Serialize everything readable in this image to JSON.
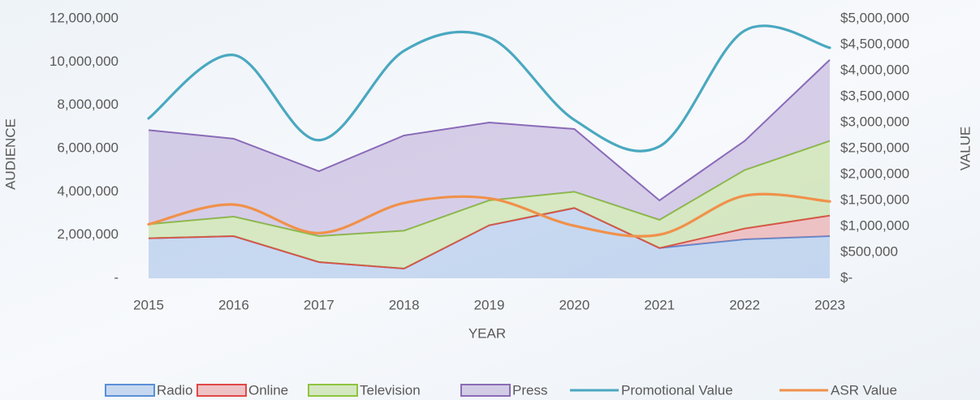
{
  "chart_data": {
    "type": "area",
    "stacked": true,
    "categories": [
      "2015",
      "2016",
      "2017",
      "2018",
      "2019",
      "2020",
      "2021",
      "2022",
      "2023"
    ],
    "x_label": "YEAR",
    "y_label": "AUDIENCE",
    "y2_label": "VALUE",
    "series": [
      {
        "name": "Radio",
        "color": "#5b8fd6",
        "values": [
          1850000,
          1950000,
          750000,
          450000,
          2450000,
          3250000,
          1400000,
          1800000,
          1950000
        ]
      },
      {
        "name": "Online",
        "color": "#e04848",
        "values": [
          0,
          0,
          0,
          0,
          0,
          0,
          0,
          500000,
          950000
        ]
      },
      {
        "name": "Television",
        "color": "#8fc43f",
        "values": [
          650000,
          900000,
          1200000,
          1750000,
          1150000,
          750000,
          1300000,
          2700000,
          3450000
        ]
      },
      {
        "name": "Press",
        "color": "#8a6bb8",
        "values": [
          4350000,
          3600000,
          3000000,
          4400000,
          3600000,
          2900000,
          900000,
          1350000,
          3750000
        ]
      },
      {
        "name": "Promotional Value",
        "color": "#4aa8c0",
        "type": "line",
        "axis": "y2",
        "values": [
          3080000,
          4300000,
          2660000,
          4380000,
          4640000,
          3050000,
          2540000,
          4770000,
          4440000
        ]
      },
      {
        "name": "ASR Value",
        "color": "#f0914a",
        "type": "line",
        "axis": "y2",
        "values": [
          1040000,
          1420000,
          870000,
          1450000,
          1540000,
          1010000,
          840000,
          1590000,
          1480000
        ]
      }
    ],
    "ylim": [
      0,
      12000000
    ],
    "yticks": [
      {
        "value": 0,
        "label": "-"
      },
      {
        "value": 2000000,
        "label": "2,000,000"
      },
      {
        "value": 4000000,
        "label": "4,000,000"
      },
      {
        "value": 6000000,
        "label": "6,000,000"
      },
      {
        "value": 8000000,
        "label": "8,000,000"
      },
      {
        "value": 10000000,
        "label": "10,000,000"
      },
      {
        "value": 12000000,
        "label": "12,000,000"
      }
    ],
    "y2lim": [
      0,
      5000000
    ],
    "y2ticks": [
      {
        "value": 0,
        "label": "$-"
      },
      {
        "value": 500000,
        "label": "$500,000"
      },
      {
        "value": 1000000,
        "label": "$1,000,000"
      },
      {
        "value": 1500000,
        "label": "$1,500,000"
      },
      {
        "value": 2000000,
        "label": "$2,000,000"
      },
      {
        "value": 2500000,
        "label": "$2,500,000"
      },
      {
        "value": 3000000,
        "label": "$3,000,000"
      },
      {
        "value": 3500000,
        "label": "$3,500,000"
      },
      {
        "value": 4000000,
        "label": "$4,000,000"
      },
      {
        "value": 4500000,
        "label": "$4,500,000"
      },
      {
        "value": 5000000,
        "label": "$5,000,000"
      }
    ],
    "legend": "bottom"
  }
}
